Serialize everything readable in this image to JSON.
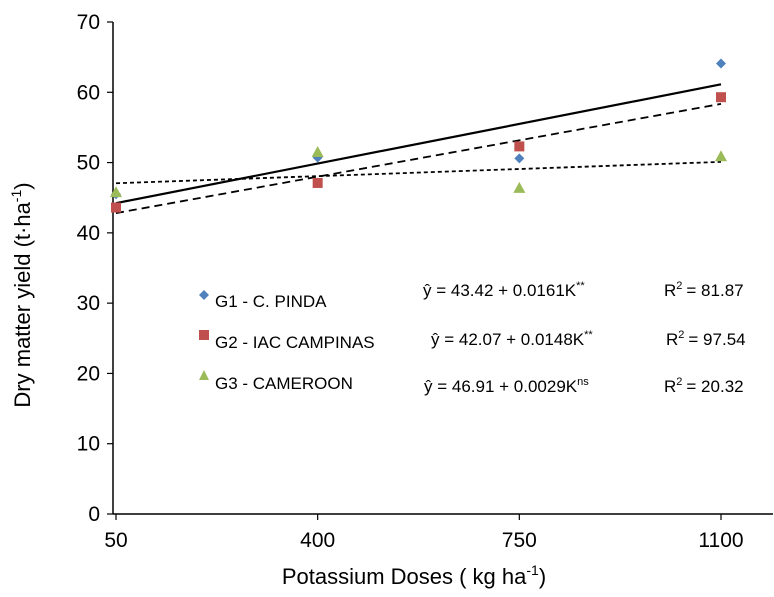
{
  "chart_data": {
    "type": "scatter",
    "xlabel": {
      "main": "Potassium Doses ( kg ha",
      "sup": "-1",
      "tail": ")"
    },
    "ylabel": {
      "main": "Dry matter yield (t·ha",
      "sup": "-1",
      "tail": ")"
    },
    "x_ticks": [
      50,
      400,
      750,
      1100
    ],
    "y_ticks": [
      0,
      10,
      20,
      30,
      40,
      50,
      60,
      70
    ],
    "xlim": [
      50,
      1100
    ],
    "ylim": [
      0,
      70
    ],
    "grid": false,
    "legend_position": "center-left",
    "series": [
      {
        "name": "G1 - C. PINDA",
        "marker": "diamond",
        "color": "#4F81BD",
        "x": [
          50,
          400,
          750,
          1100
        ],
        "y": [
          45.5,
          50.7,
          50.6,
          64.1
        ],
        "trend": {
          "intercept": 43.42,
          "slope": 0.0161,
          "style": "solid"
        },
        "equation": {
          "prefix": "ŷ = 43.42 + 0.0161K",
          "sup": "**",
          "r2_value": "= 81.87"
        }
      },
      {
        "name": "G2 - IAC CAMPINAS",
        "marker": "square",
        "color": "#C0504D",
        "x": [
          50,
          400,
          750,
          1100
        ],
        "y": [
          43.6,
          47.1,
          52.3,
          59.3
        ],
        "trend": {
          "intercept": 42.07,
          "slope": 0.0148,
          "style": "dashed"
        },
        "equation": {
          "prefix": "ŷ = 42.07 + 0.0148K",
          "sup": "**",
          "r2_value": "= 97.54"
        }
      },
      {
        "name": "G3 - CAMEROON",
        "marker": "triangle",
        "color": "#9BBB59",
        "x": [
          50,
          400,
          750,
          1100
        ],
        "y": [
          45.8,
          51.5,
          46.4,
          50.9
        ],
        "trend": {
          "intercept": 46.91,
          "slope": 0.0029,
          "style": "dotted"
        },
        "equation": {
          "prefix": "ŷ = 46.91 + 0.0029K",
          "sup": "ns",
          "r2_value": "= 20.32"
        }
      }
    ]
  }
}
